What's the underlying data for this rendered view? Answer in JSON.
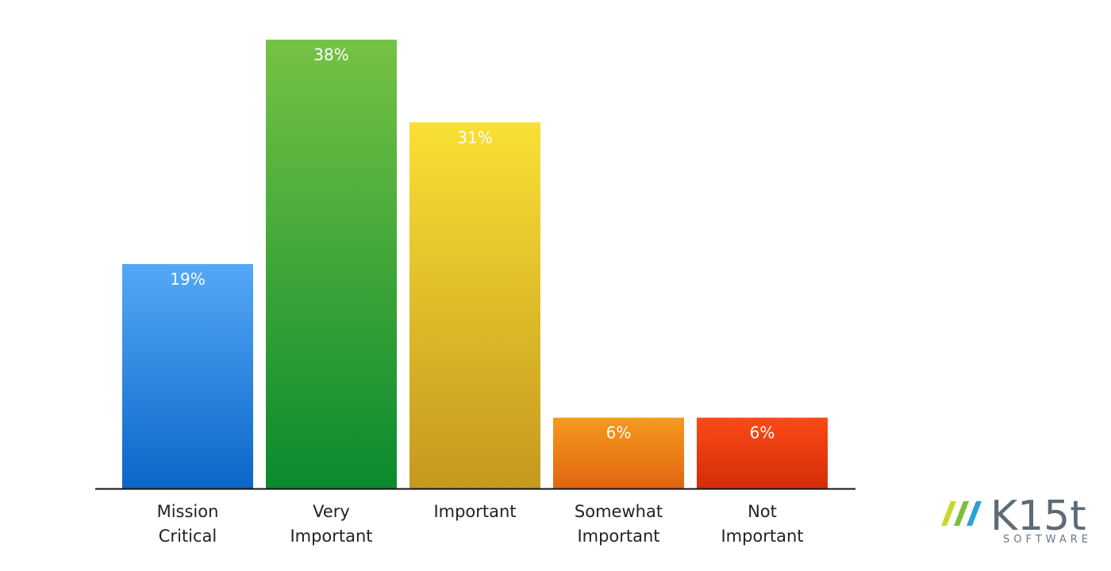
{
  "chart_data": {
    "type": "bar",
    "title": "",
    "xlabel": "",
    "ylabel": "",
    "categories": [
      [
        "Mission",
        "Critical"
      ],
      [
        "Very",
        "Important"
      ],
      [
        "Important"
      ],
      [
        "Somewhat",
        "Important"
      ],
      [
        "Not",
        "Important"
      ]
    ],
    "values": [
      19,
      38,
      31,
      6,
      6
    ],
    "data_labels": [
      "19%",
      "38%",
      "31%",
      "6%",
      "6%"
    ],
    "ylim": [
      0,
      38
    ],
    "grid": false,
    "legend": "none",
    "colors": [
      {
        "top": "#55a8f7",
        "bottom": "#0a66c7"
      },
      {
        "top": "#76c244",
        "bottom": "#0a8a2e"
      },
      {
        "top": "#f9e034",
        "bottom": "#c4991f"
      },
      {
        "top": "#f59a1e",
        "bottom": "#e06510"
      },
      {
        "top": "#fb4a16",
        "bottom": "#d42c08"
      }
    ]
  },
  "logo": {
    "text": "K15t",
    "subtext": "SOFTWARE",
    "slash_colors": [
      "#c8d92a",
      "#7cbd3a",
      "#2f9fd8"
    ]
  }
}
